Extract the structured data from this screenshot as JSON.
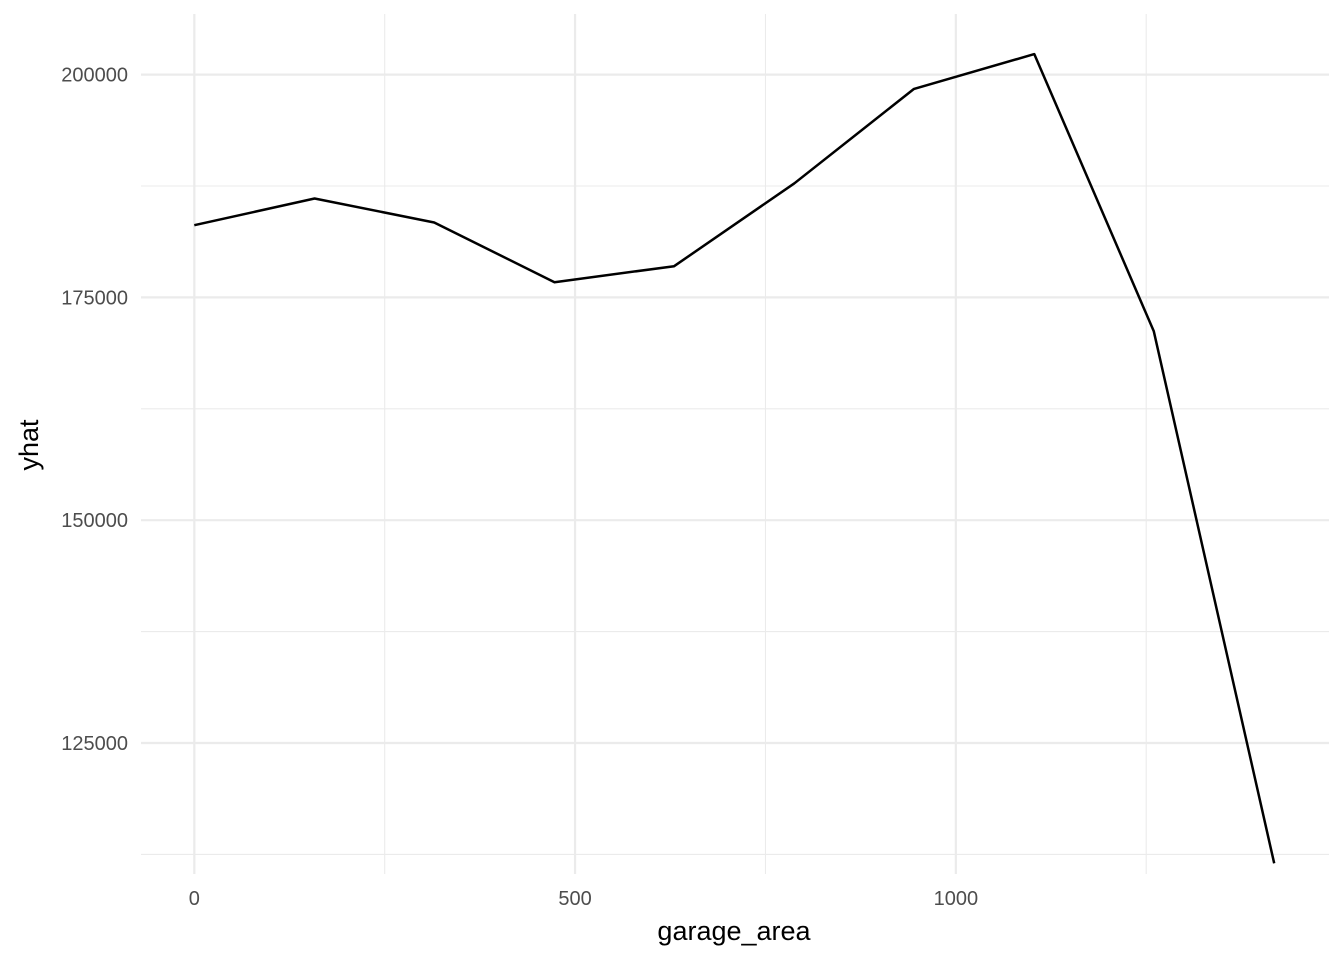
{
  "chart_data": {
    "type": "line",
    "title": "",
    "xlabel": "garage_area",
    "ylabel": "yhat",
    "xlim": [
      -70,
      1490
    ],
    "ylim": [
      110300,
      206800
    ],
    "x_major_ticks": [
      0,
      500,
      1000
    ],
    "x_minor_ticks": [
      250,
      750,
      1250
    ],
    "y_major_ticks": [
      125000,
      150000,
      175000,
      200000
    ],
    "y_minor_ticks": [
      112500,
      137500,
      162500,
      187500
    ],
    "x_tick_labels": [
      "0",
      "500",
      "1000"
    ],
    "y_tick_labels": [
      "125000",
      "150000",
      "175000",
      "200000"
    ],
    "grid": true,
    "legend": "none",
    "line_color": "#000000",
    "grid_color": "#ebebeb",
    "series": [
      {
        "x": [
          0,
          158,
          315,
          473,
          630,
          788,
          945,
          1103,
          1260,
          1418
        ],
        "y": [
          183100,
          186100,
          183400,
          176700,
          178500,
          187800,
          198400,
          202300,
          171200,
          111500
        ]
      }
    ]
  }
}
